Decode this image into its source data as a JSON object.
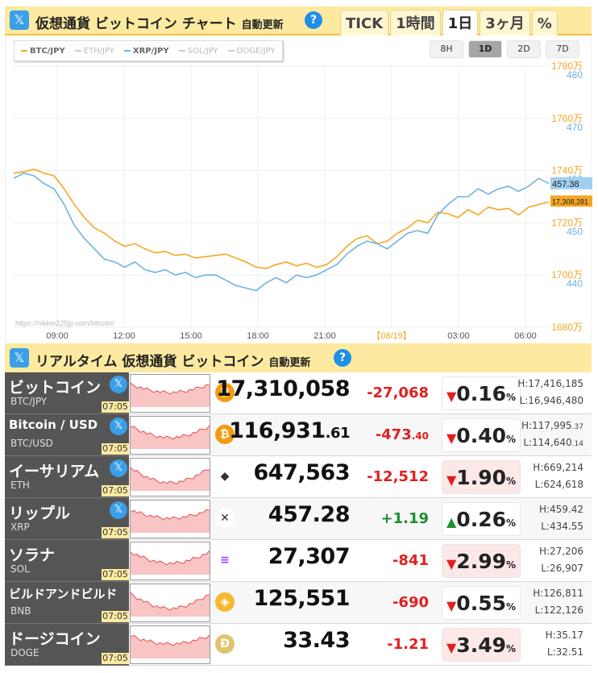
{
  "header": {
    "x_label": "𝕏",
    "title": "仮想通貨 ビットコイン チャート",
    "auto": "自動更新",
    "help": "?"
  },
  "tabs": [
    "TICK",
    "1時間",
    "1日",
    "3ヶ月",
    "%"
  ],
  "active_tab": 2,
  "legend": [
    {
      "label": "BTC/JPY",
      "color": "#f5a623",
      "active": true
    },
    {
      "label": "ETH/JPY",
      "color": "#aaaaaa",
      "active": false
    },
    {
      "label": "XRP/JPY",
      "color": "#6fb3e0",
      "active": true
    },
    {
      "label": "SOL/JPY",
      "color": "#aaaaaa",
      "active": false
    },
    {
      "label": "DOGE/JPY",
      "color": "#aaaaaa",
      "active": false
    }
  ],
  "ranges": [
    "8H",
    "1D",
    "2D",
    "7D"
  ],
  "active_range": 1,
  "chart_data": {
    "type": "line",
    "x_ticks": [
      "09:00",
      "12:00",
      "15:00",
      "18:00",
      "21:00",
      "【08/19】",
      "03:00",
      "06:00"
    ],
    "y_btc_ticks": [
      "1780万",
      "1760万",
      "1740万",
      "1720万",
      "1700万",
      "1680万"
    ],
    "y_xrp_ticks": [
      "480",
      "470",
      "460",
      "450",
      "440"
    ],
    "ylim_btc": [
      1680,
      1780
    ],
    "ylim_xrp": [
      430,
      480
    ],
    "btc_last": "17,308,281",
    "xrp_last": "457.38",
    "watermark": "https://nikkei225jp.com/bitcoin/",
    "series": [
      {
        "name": "BTC/JPY",
        "color": "#f5a623",
        "values": [
          1739,
          1739.5,
          1740.5,
          1739,
          1738,
          1733,
          1727,
          1722,
          1718,
          1716,
          1713,
          1711,
          1712,
          1710,
          1708.5,
          1709,
          1707.5,
          1708,
          1706.5,
          1707,
          1707.5,
          1708,
          1706.5,
          1705,
          1703,
          1702.5,
          1704,
          1705,
          1703.5,
          1704.5,
          1703,
          1704,
          1707,
          1711,
          1714,
          1715,
          1712,
          1713,
          1716,
          1718,
          1721,
          1720,
          1724,
          1723.5,
          1722,
          1725,
          1723,
          1726,
          1725,
          1725.5,
          1723,
          1726,
          1727,
          1728
        ]
      },
      {
        "name": "XRP/JPY",
        "color": "#6fb3e0",
        "values": [
          458.5,
          459.5,
          459,
          457.5,
          456.5,
          453.5,
          449.5,
          447,
          445,
          443,
          442.5,
          441.5,
          442.5,
          441,
          440.5,
          441,
          440,
          440.5,
          439.5,
          440,
          440,
          439,
          438,
          437.5,
          437,
          438.5,
          439.5,
          438.5,
          440,
          439.5,
          440,
          441,
          442,
          444,
          445.5,
          446.5,
          446,
          445,
          446.5,
          448,
          448.5,
          448,
          451.5,
          453.5,
          455,
          455,
          456.5,
          455.5,
          456.5,
          457,
          456,
          457,
          458.5,
          457.5
        ]
      }
    ]
  },
  "section2": {
    "x_label": "𝕏",
    "title": "リアルタイム 仮想通貨 ビットコイン",
    "auto": "自動更新",
    "help": "?"
  },
  "rows": [
    {
      "name": "ビットコイン",
      "code": "BTC/JPY",
      "x": true,
      "time": "07:05",
      "icon": "bitcoin-icon",
      "icon_glyph": "₿",
      "icon_color": "#f39c12",
      "price": "17,310,058",
      "price_dec": "",
      "chg": "-27,068",
      "chg_dec": "",
      "dir": "down",
      "pct": "0.16",
      "pct_bg": false,
      "high": "H:17,416,185",
      "high_dec": "",
      "low": "L:16,946,480",
      "low_dec": ""
    },
    {
      "name": "Bitcoin / USD",
      "code": "BTC/USD",
      "x": true,
      "time": "07:05",
      "icon": "bitcoin-icon",
      "icon_glyph": "₿",
      "icon_color": "#f39c12",
      "price": "116,931",
      "price_dec": ".61",
      "chg": "-473",
      "chg_dec": ".40",
      "dir": "down",
      "pct": "0.40",
      "pct_bg": false,
      "high": "H:117,995",
      "high_dec": ".37",
      "low": "L:114,640",
      "low_dec": ".14"
    },
    {
      "name": "イーサリアム",
      "code": "ETH",
      "x": true,
      "time": "07:05",
      "icon": "ethereum-icon",
      "icon_glyph": "◆",
      "icon_color": "#ffffff",
      "price": "647,563",
      "price_dec": "",
      "chg": "-12,512",
      "chg_dec": "",
      "dir": "down",
      "pct": "1.90",
      "pct_bg": true,
      "high": "H:669,214",
      "high_dec": "",
      "low": "L:624,618",
      "low_dec": ""
    },
    {
      "name": "リップル",
      "code": "XRP",
      "x": true,
      "time": "07:05",
      "icon": "xrp-icon",
      "icon_glyph": "✕",
      "icon_color": "#ffffff",
      "price": "457.28",
      "price_dec": "",
      "chg": "+1.19",
      "chg_dec": "",
      "dir": "up",
      "pct": "0.26",
      "pct_bg": false,
      "high": "H:459.42",
      "high_dec": "",
      "low": "L:434.55",
      "low_dec": ""
    },
    {
      "name": "ソラナ",
      "code": "SOL",
      "x": false,
      "time": "07:05",
      "icon": "solana-icon",
      "icon_glyph": "≡",
      "icon_color": "#ffffff",
      "price": "27,307",
      "price_dec": "",
      "chg": "-841",
      "chg_dec": "",
      "dir": "down",
      "pct": "2.99",
      "pct_bg": true,
      "high": "H:27,206",
      "high_dec": "",
      "low": "L:26,907",
      "low_dec": ""
    },
    {
      "name": "ビルドアンドビルド",
      "code": "BNB",
      "x": false,
      "time": "07:05",
      "icon": "bnb-icon",
      "icon_glyph": "◈",
      "icon_color": "#f3ba2f",
      "price": "125,551",
      "price_dec": "",
      "chg": "-690",
      "chg_dec": "",
      "dir": "down",
      "pct": "0.55",
      "pct_bg": false,
      "high": "H:126,811",
      "high_dec": "",
      "low": "L:122,126",
      "low_dec": ""
    },
    {
      "name": "ドージコイン",
      "code": "DOGE",
      "x": false,
      "time": "07:05",
      "icon": "dogecoin-icon",
      "icon_glyph": "Ð",
      "icon_color": "#c8a03a",
      "price": "33.43",
      "price_dec": "",
      "chg": "-1.21",
      "chg_dec": "",
      "dir": "down",
      "pct": "3.49",
      "pct_bg": true,
      "high": "H:35.17",
      "high_dec": "",
      "low": "L:32.51",
      "low_dec": ""
    }
  ]
}
